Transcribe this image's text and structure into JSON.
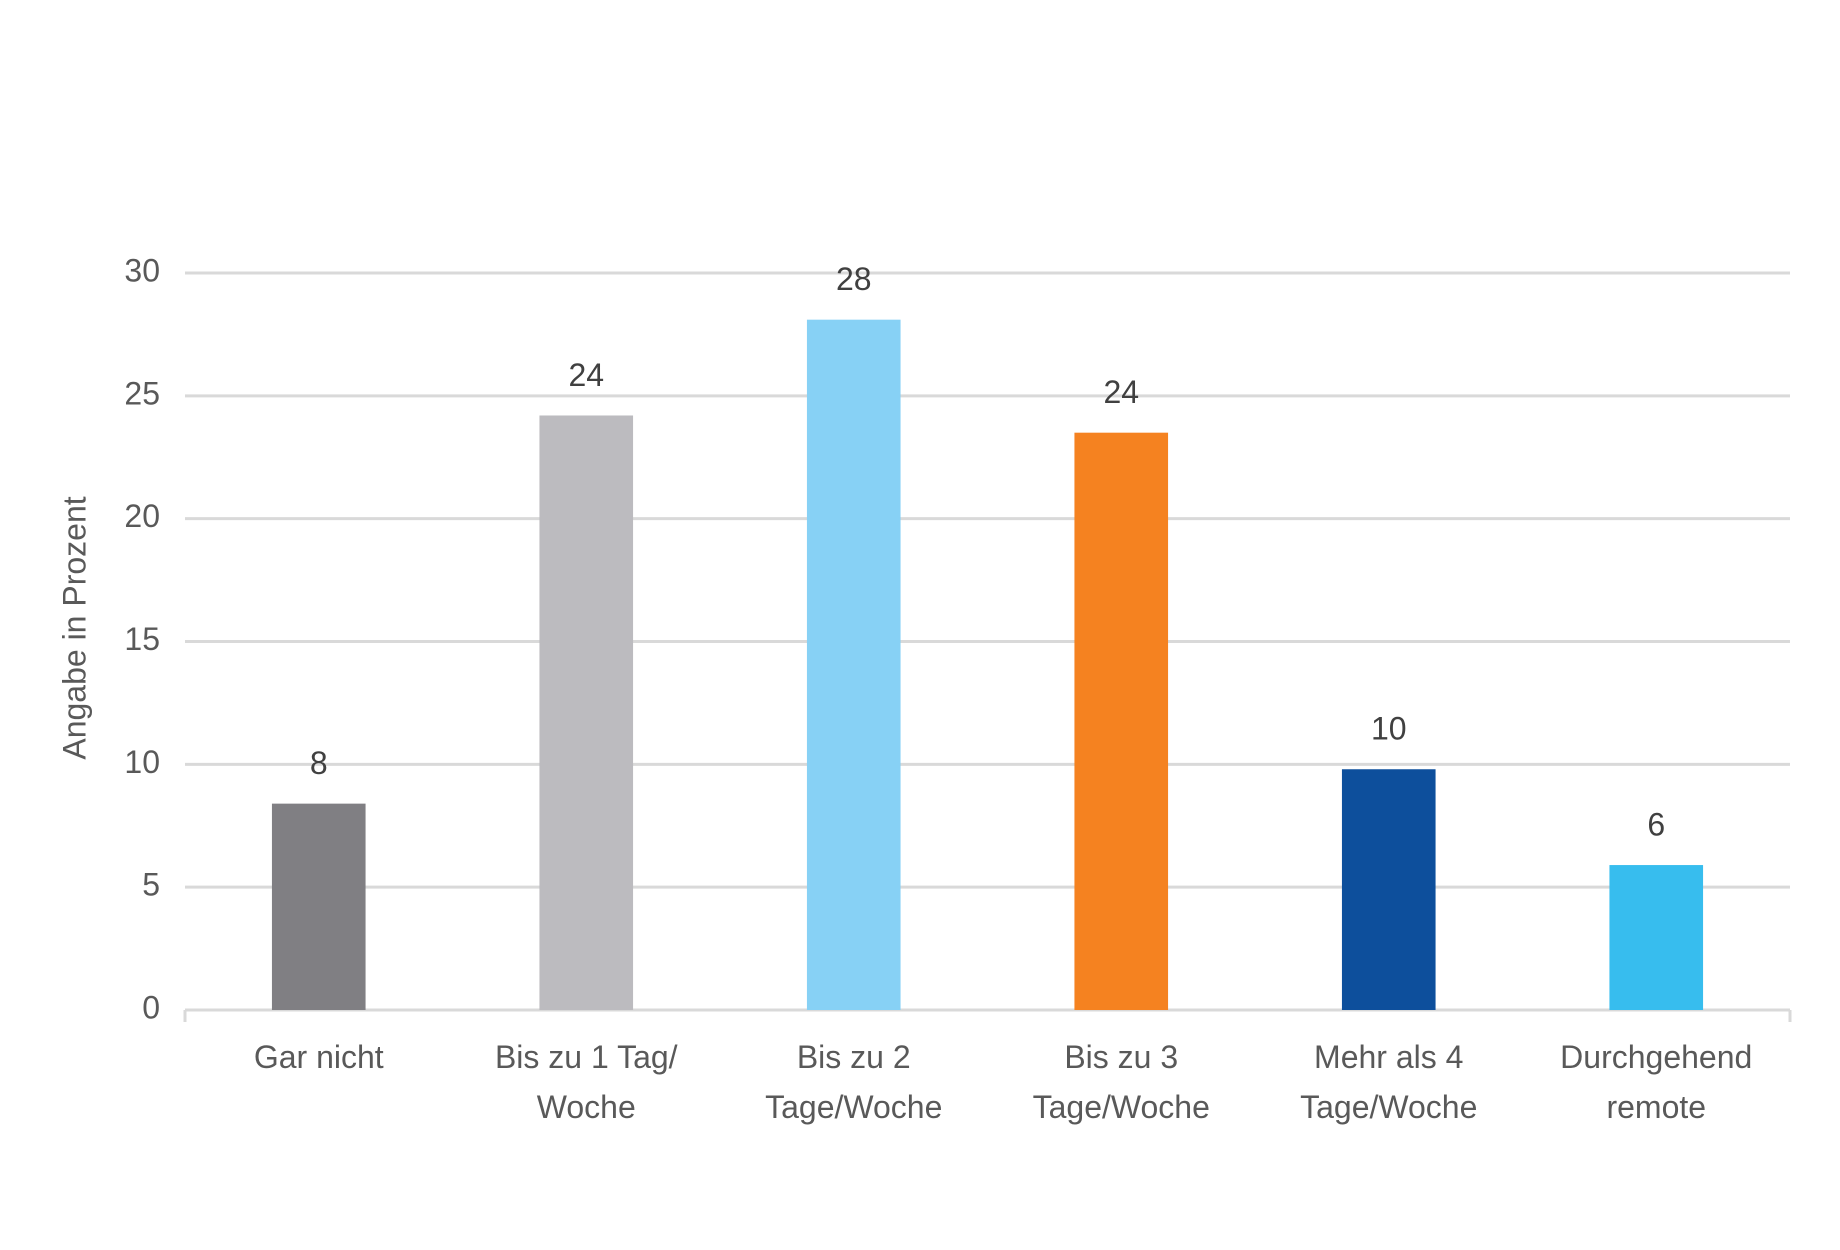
{
  "chart_data": {
    "type": "bar",
    "y_label": "Angabe in Prozent",
    "categories": [
      [
        "Gar nicht"
      ],
      [
        "Bis zu 1 Tag/",
        "Woche"
      ],
      [
        "Bis zu 2",
        "Tage/Woche"
      ],
      [
        "Bis zu 3",
        "Tage/Woche"
      ],
      [
        "Mehr als 4",
        "Tage/Woche"
      ],
      [
        "Durchgehend",
        "remote"
      ]
    ],
    "values": [
      8.4,
      24.2,
      28.1,
      23.5,
      9.8,
      5.9
    ],
    "value_labels": [
      "8",
      "24",
      "28",
      "24",
      "10",
      "6"
    ],
    "colors": [
      "#807f83",
      "#bcbbbf",
      "#87d1f5",
      "#f58220",
      "#0d4f9c",
      "#37bdee"
    ],
    "ylim": [
      0,
      30
    ],
    "yticks": [
      0,
      5,
      10,
      15,
      20,
      25,
      30
    ],
    "grid": true
  }
}
